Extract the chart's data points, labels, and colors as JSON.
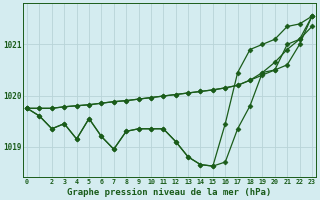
{
  "bg_color": "#d4ecf0",
  "grid_color": "#b8d4d8",
  "line_color": "#1a5c1a",
  "xlabel": "Graphe pression niveau de la mer (hPa)",
  "ylim": [
    1018.4,
    1021.8
  ],
  "yticks": [
    1019,
    1020,
    1021
  ],
  "x_values": [
    0,
    1,
    2,
    3,
    4,
    5,
    6,
    7,
    8,
    9,
    10,
    11,
    12,
    13,
    14,
    15,
    16,
    17,
    18,
    19,
    20,
    21,
    22,
    23
  ],
  "x_tick_labels": [
    "0",
    "",
    "2",
    "3",
    "4",
    "5",
    "6",
    "7",
    "8",
    "9",
    "10",
    "11",
    "12",
    "13",
    "14",
    "15",
    "16",
    "17",
    "18",
    "19",
    "20",
    "21",
    "22",
    "23"
  ],
  "series": [
    [
      1019.75,
      1019.6,
      1019.35,
      1019.45,
      1019.15,
      1019.55,
      1019.2,
      1018.95,
      1019.3,
      1019.35,
      1019.35,
      1019.35,
      1019.1,
      1018.8,
      1018.65,
      1018.62,
      1018.7,
      1019.35,
      1019.8,
      1020.45,
      1020.5,
      1021.0,
      1021.1,
      1021.35
    ],
    [
      1019.75,
      1019.6,
      1019.35,
      1019.45,
      1019.15,
      1019.55,
      1019.2,
      1018.95,
      1019.3,
      1019.35,
      1019.35,
      1019.35,
      1019.1,
      1018.8,
      1018.65,
      1018.62,
      1019.45,
      1020.45,
      1020.9,
      1021.0,
      1021.1,
      1021.35,
      1021.4,
      1021.55
    ],
    [
      1019.75,
      1019.75,
      1019.75,
      1019.78,
      1019.8,
      1019.82,
      1019.85,
      1019.88,
      1019.9,
      1019.93,
      1019.96,
      1019.99,
      1020.02,
      1020.05,
      1020.08,
      1020.11,
      1020.15,
      1020.2,
      1020.3,
      1020.4,
      1020.5,
      1020.6,
      1021.0,
      1021.55
    ],
    [
      1019.75,
      1019.75,
      1019.75,
      1019.78,
      1019.8,
      1019.82,
      1019.85,
      1019.88,
      1019.9,
      1019.93,
      1019.96,
      1019.99,
      1020.02,
      1020.05,
      1020.08,
      1020.11,
      1020.15,
      1020.2,
      1020.3,
      1020.45,
      1020.65,
      1020.9,
      1021.1,
      1021.55
    ]
  ],
  "marker_size": 2.5,
  "linewidth": 0.9
}
